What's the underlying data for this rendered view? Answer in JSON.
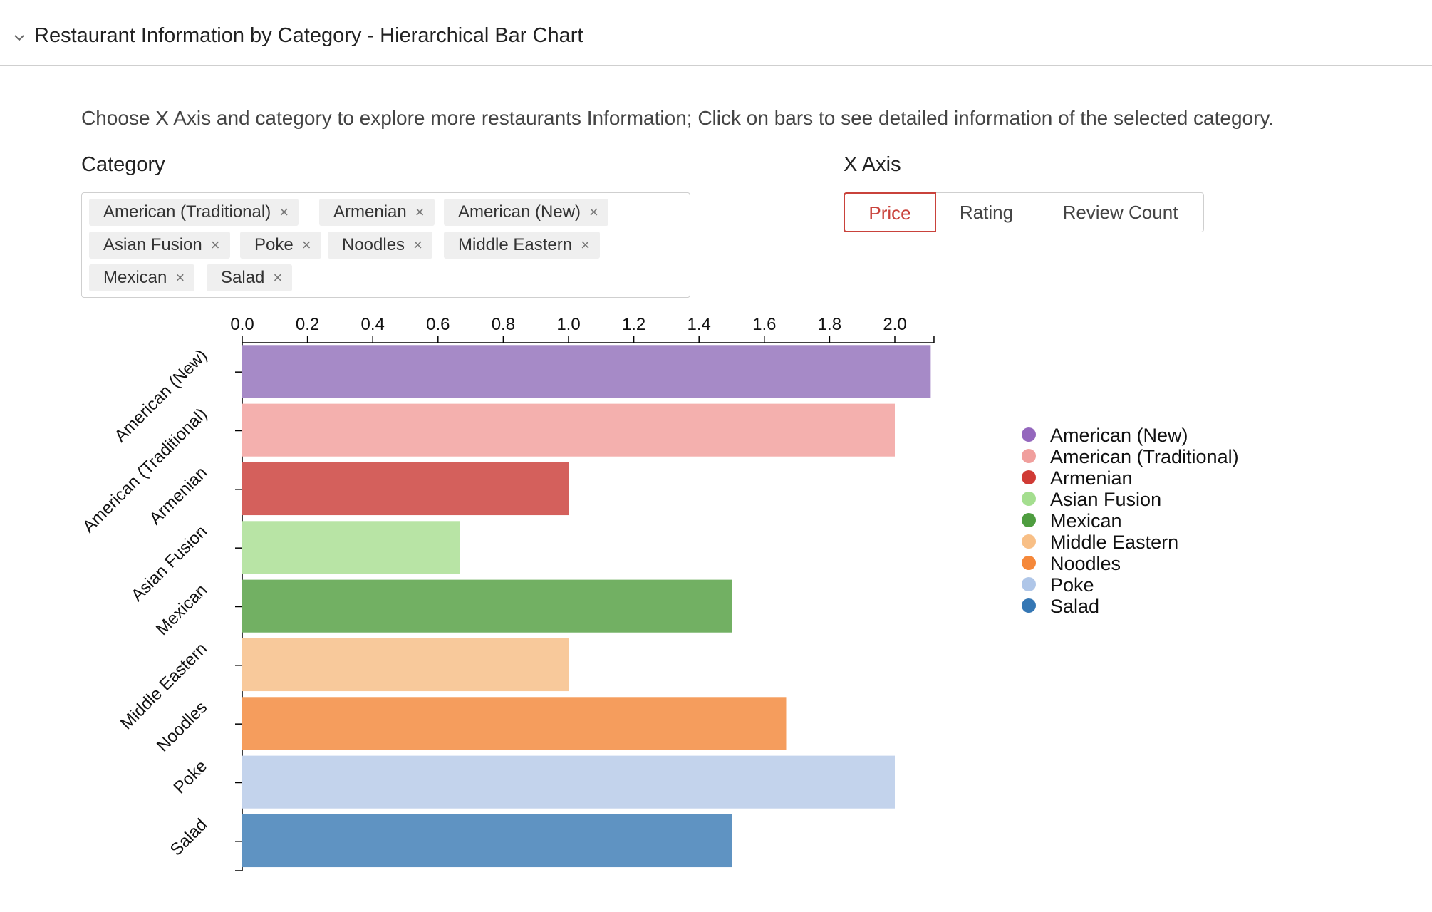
{
  "panel": {
    "title": "Restaurant Information by Category - Hierarchical Bar Chart",
    "icon": "chevron-down-icon"
  },
  "instructions": "Choose X Axis and category to explore more restaurants Information; Click on bars to see detailed information of the selected category.",
  "category_filter": {
    "label": "Category",
    "tags": [
      "American (Traditional)",
      "Armenian",
      "American (New)",
      "Asian Fusion",
      "Poke",
      "Noodles",
      "Middle Eastern",
      "Mexican",
      "Salad"
    ],
    "remove_glyph": "×"
  },
  "x_axis_selector": {
    "label": "X Axis",
    "options": [
      "Price",
      "Rating",
      "Review Count"
    ],
    "selected": "Price"
  },
  "colors": {
    "accent": "#c9423b"
  },
  "chart_data": {
    "type": "bar",
    "orientation": "horizontal",
    "categories": [
      "American (New)",
      "American (Traditional)",
      "Armenian",
      "Asian Fusion",
      "Mexican",
      "Middle Eastern",
      "Noodles",
      "Poke",
      "Salad"
    ],
    "values": [
      2.11,
      2.0,
      1.0,
      0.667,
      1.5,
      1.0,
      1.667,
      2.0,
      1.5
    ],
    "bar_colors": [
      "#a68ac7",
      "#f4b0ae",
      "#d4605c",
      "#b8e4a5",
      "#72b063",
      "#f8c99b",
      "#f59d5d",
      "#c3d3ec",
      "#5f93c2"
    ],
    "x_ticks": [
      "0.0",
      "0.2",
      "0.4",
      "0.6",
      "0.8",
      "1.0",
      "1.2",
      "1.4",
      "1.6",
      "1.8",
      "2.0"
    ],
    "xlim": [
      0,
      2.12
    ],
    "legend": {
      "position": "right",
      "entries": [
        {
          "label": "American (New)",
          "color": "#9467bd"
        },
        {
          "label": "American (Traditional)",
          "color": "#f09f9d"
        },
        {
          "label": "Armenian",
          "color": "#d03b35"
        },
        {
          "label": "Asian Fusion",
          "color": "#a4de8f"
        },
        {
          "label": "Mexican",
          "color": "#4e9d3f"
        },
        {
          "label": "Middle Eastern",
          "color": "#f8bf86"
        },
        {
          "label": "Noodles",
          "color": "#f5883a"
        },
        {
          "label": "Poke",
          "color": "#afc6e8"
        },
        {
          "label": "Salad",
          "color": "#3577b4"
        }
      ]
    }
  }
}
